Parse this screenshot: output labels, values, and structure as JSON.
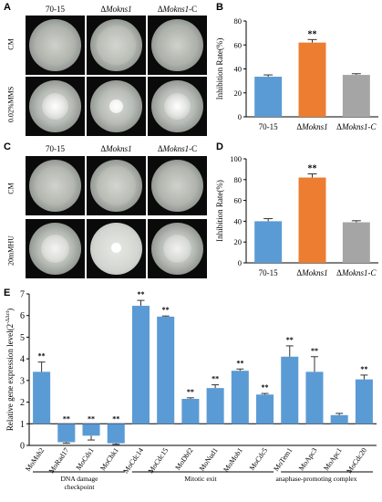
{
  "panels": {
    "A": {
      "letter": "A",
      "columns": [
        "70-15",
        "ΔMokns1",
        "ΔMokns1-C"
      ],
      "rows": [
        "CM",
        "0.02%MMS"
      ]
    },
    "C": {
      "letter": "C",
      "columns": [
        "70-15",
        "ΔMokns1",
        "ΔMokns1-C"
      ],
      "rows": [
        "CM",
        "20mMHU"
      ]
    },
    "B": {
      "letter": "B"
    },
    "D": {
      "letter": "D"
    },
    "E": {
      "letter": "E"
    }
  },
  "colors": {
    "blue": "#5b9bd5",
    "orange": "#ed7d31",
    "gray": "#a5a5a5"
  },
  "chart_data": [
    {
      "id": "B",
      "type": "bar",
      "ylabel": "Inhibition Rate(%)",
      "ylim": [
        0,
        80
      ],
      "yticks": [
        0,
        20,
        40,
        60,
        80
      ],
      "categories": [
        "70-15",
        "ΔMokns1",
        "ΔMokns1-C"
      ],
      "values": [
        33.5,
        62,
        35
      ],
      "errors": [
        1.5,
        2.5,
        1.0
      ],
      "significance": [
        "",
        "**",
        ""
      ],
      "bar_colors": [
        "#5b9bd5",
        "#ed7d31",
        "#a5a5a5"
      ]
    },
    {
      "id": "D",
      "type": "bar",
      "ylabel": "Inhibition Rate(%)",
      "ylim": [
        0,
        100
      ],
      "yticks": [
        0,
        20,
        40,
        60,
        80,
        100
      ],
      "categories": [
        "70-15",
        "ΔMokns1",
        "ΔMokns1-C"
      ],
      "values": [
        40,
        82,
        39
      ],
      "errors": [
        2.5,
        3.5,
        1.5
      ],
      "significance": [
        "",
        "**",
        ""
      ],
      "bar_colors": [
        "#5b9bd5",
        "#ed7d31",
        "#a5a5a5"
      ]
    },
    {
      "id": "E",
      "type": "bar",
      "ylabel": "Relative gene expression level(2^-ΔΔct)",
      "ylim": [
        0,
        7
      ],
      "yticks": [
        0,
        1,
        2,
        3,
        4,
        5,
        6,
        7
      ],
      "baseline": 1,
      "categories": [
        "MoMsh2",
        "MoRad17",
        "MoCds1",
        "MoChk1",
        "MoCdc14",
        "MoCdc15",
        "MoDbf2",
        "MoNud1",
        "MoMob1",
        "MoCdc5",
        "MoTem1",
        "MoApc3",
        "MoApc1",
        "MoCdc20"
      ],
      "values": [
        3.4,
        0.15,
        0.45,
        0.1,
        6.45,
        5.95,
        2.15,
        2.65,
        3.45,
        2.35,
        4.1,
        3.4,
        1.4,
        3.05
      ],
      "errors": [
        0.45,
        0.05,
        0.2,
        0.05,
        0.25,
        0.03,
        0.05,
        0.15,
        0.08,
        0.05,
        0.5,
        0.7,
        0.08,
        0.2
      ],
      "significance": [
        "**",
        "**",
        "**",
        "**",
        "**",
        "**",
        "**",
        "**",
        "**",
        "**",
        "**",
        "**",
        "",
        "**"
      ],
      "groups": [
        {
          "label": "DNA damage checkpoint",
          "start": 0,
          "end": 3
        },
        {
          "label": "Mitotic exit",
          "start": 4,
          "end": 9
        },
        {
          "label": "anaphase-promoting complex",
          "start": 10,
          "end": 13
        }
      ]
    }
  ]
}
